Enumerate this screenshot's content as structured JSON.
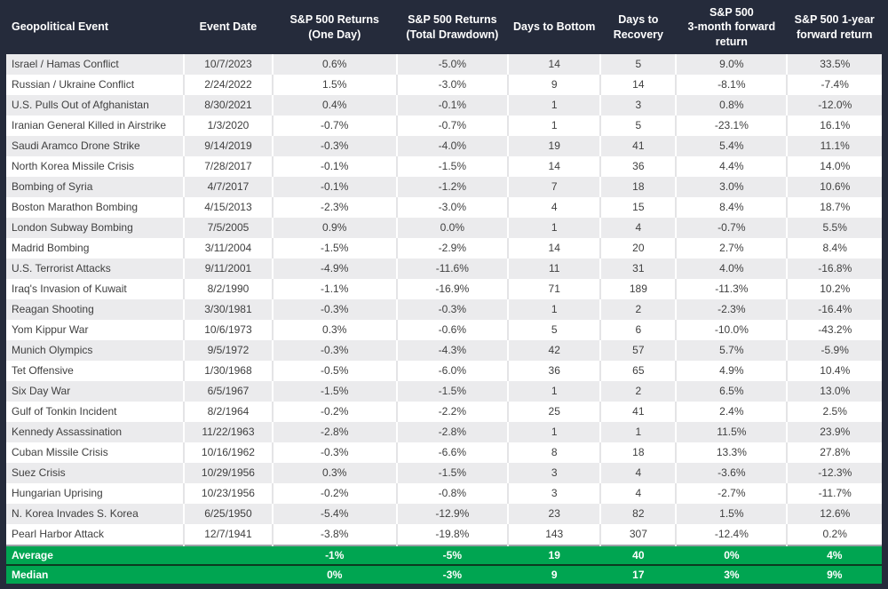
{
  "colors": {
    "header_bg": "#252B3B",
    "stripe_row_bg": "#EBEBED",
    "white_row_bg": "#FFFFFF",
    "summary_bg": "#00A551",
    "data_text": "#3F3F3F",
    "header_text": "#FFFFFF"
  },
  "chart_data": {
    "type": "table",
    "columns": [
      {
        "key": "event",
        "lines": [
          "Geopolitical Event"
        ]
      },
      {
        "key": "date",
        "lines": [
          "Event Date"
        ]
      },
      {
        "key": "one-day",
        "lines": [
          "S&P 500 Returns",
          "(One Day)"
        ]
      },
      {
        "key": "drawdown",
        "lines": [
          "S&P 500 Returns",
          "(Total Drawdown)"
        ]
      },
      {
        "key": "days-bottom",
        "lines": [
          "Days to Bottom"
        ]
      },
      {
        "key": "days-recovery",
        "lines": [
          "Days to",
          "Recovery"
        ]
      },
      {
        "key": "fwd-3m",
        "lines": [
          "S&P 500",
          "3-month forward",
          "return"
        ]
      },
      {
        "key": "fwd-1y",
        "lines": [
          "S&P 500 1-year",
          "forward return"
        ]
      }
    ],
    "rows": [
      [
        "Israel / Hamas Conflict",
        "10/7/2023",
        "0.6%",
        "-5.0%",
        "14",
        "5",
        "9.0%",
        "33.5%"
      ],
      [
        "Russian / Ukraine Conflict",
        "2/24/2022",
        "1.5%",
        "-3.0%",
        "9",
        "14",
        "-8.1%",
        "-7.4%"
      ],
      [
        "U.S. Pulls Out of Afghanistan",
        "8/30/2021",
        "0.4%",
        "-0.1%",
        "1",
        "3",
        "0.8%",
        "-12.0%"
      ],
      [
        "Iranian General Killed in Airstrike",
        "1/3/2020",
        "-0.7%",
        "-0.7%",
        "1",
        "5",
        "-23.1%",
        "16.1%"
      ],
      [
        "Saudi Aramco Drone Strike",
        "9/14/2019",
        "-0.3%",
        "-4.0%",
        "19",
        "41",
        "5.4%",
        "11.1%"
      ],
      [
        "North Korea Missile Crisis",
        "7/28/2017",
        "-0.1%",
        "-1.5%",
        "14",
        "36",
        "4.4%",
        "14.0%"
      ],
      [
        "Bombing of Syria",
        "4/7/2017",
        "-0.1%",
        "-1.2%",
        "7",
        "18",
        "3.0%",
        "10.6%"
      ],
      [
        "Boston Marathon Bombing",
        "4/15/2013",
        "-2.3%",
        "-3.0%",
        "4",
        "15",
        "8.4%",
        "18.7%"
      ],
      [
        "London Subway Bombing",
        "7/5/2005",
        "0.9%",
        "0.0%",
        "1",
        "4",
        "-0.7%",
        "5.5%"
      ],
      [
        "Madrid Bombing",
        "3/11/2004",
        "-1.5%",
        "-2.9%",
        "14",
        "20",
        "2.7%",
        "8.4%"
      ],
      [
        "U.S. Terrorist Attacks",
        "9/11/2001",
        "-4.9%",
        "-11.6%",
        "11",
        "31",
        "4.0%",
        "-16.8%"
      ],
      [
        "Iraq's Invasion of Kuwait",
        "8/2/1990",
        "-1.1%",
        "-16.9%",
        "71",
        "189",
        "-11.3%",
        "10.2%"
      ],
      [
        "Reagan Shooting",
        "3/30/1981",
        "-0.3%",
        "-0.3%",
        "1",
        "2",
        "-2.3%",
        "-16.4%"
      ],
      [
        "Yom Kippur War",
        "10/6/1973",
        "0.3%",
        "-0.6%",
        "5",
        "6",
        "-10.0%",
        "-43.2%"
      ],
      [
        "Munich Olympics",
        "9/5/1972",
        "-0.3%",
        "-4.3%",
        "42",
        "57",
        "5.7%",
        "-5.9%"
      ],
      [
        "Tet Offensive",
        "1/30/1968",
        "-0.5%",
        "-6.0%",
        "36",
        "65",
        "4.9%",
        "10.4%"
      ],
      [
        "Six Day War",
        "6/5/1967",
        "-1.5%",
        "-1.5%",
        "1",
        "2",
        "6.5%",
        "13.0%"
      ],
      [
        "Gulf of Tonkin Incident",
        "8/2/1964",
        "-0.2%",
        "-2.2%",
        "25",
        "41",
        "2.4%",
        "2.5%"
      ],
      [
        "Kennedy Assassination",
        "11/22/1963",
        "-2.8%",
        "-2.8%",
        "1",
        "1",
        "11.5%",
        "23.9%"
      ],
      [
        "Cuban Missile Crisis",
        "10/16/1962",
        "-0.3%",
        "-6.6%",
        "8",
        "18",
        "13.3%",
        "27.8%"
      ],
      [
        "Suez Crisis",
        "10/29/1956",
        "0.3%",
        "-1.5%",
        "3",
        "4",
        "-3.6%",
        "-12.3%"
      ],
      [
        "Hungarian Uprising",
        "10/23/1956",
        "-0.2%",
        "-0.8%",
        "3",
        "4",
        "-2.7%",
        "-11.7%"
      ],
      [
        "N. Korea Invades S. Korea",
        "6/25/1950",
        "-5.4%",
        "-12.9%",
        "23",
        "82",
        "1.5%",
        "12.6%"
      ],
      [
        "Pearl Harbor Attack",
        "12/7/1941",
        "-3.8%",
        "-19.8%",
        "143",
        "307",
        "-12.4%",
        "0.2%"
      ]
    ],
    "summary_rows": [
      [
        "Average",
        "",
        "-1%",
        "-5%",
        "19",
        "40",
        "0%",
        "4%"
      ],
      [
        "Median",
        "",
        "0%",
        "-3%",
        "9",
        "17",
        "3%",
        "9%"
      ]
    ]
  }
}
